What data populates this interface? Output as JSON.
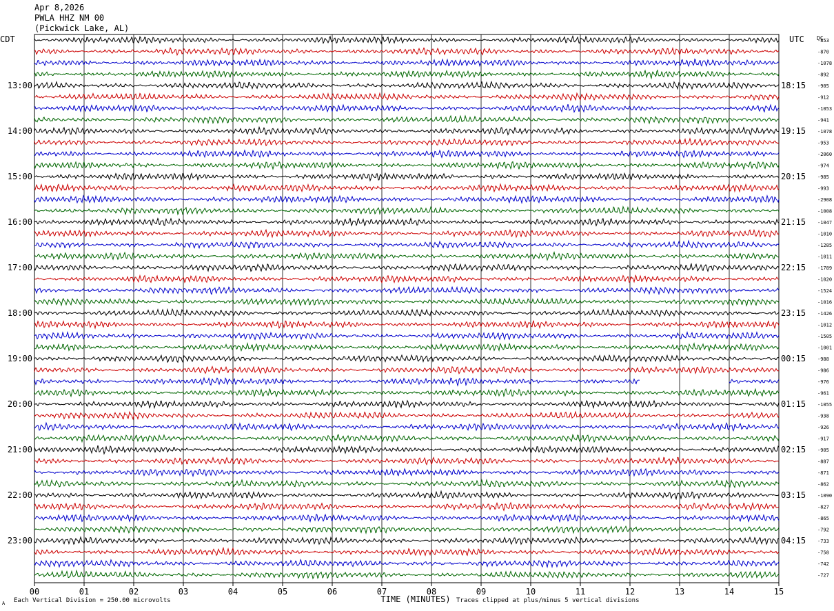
{
  "header": {
    "date": "Apr 8,2026",
    "station": "PWLA HHZ NM 00",
    "location": "(Pickwick Lake, AL)"
  },
  "left_axis": {
    "title": "CDT"
  },
  "right_axis": {
    "title": "UTC",
    "dc_title": "DC"
  },
  "footer": {
    "scale_note": "Each Vertical Division = 250.00 microvolts",
    "clip_note": "Traces clipped at plus/minus 5 vertical divisions",
    "corner_mark": "A"
  },
  "chart_data": {
    "type": "line",
    "xlabel": "TIME (MINUTES)",
    "xlim": [
      0,
      15
    ],
    "x_ticks": [
      "00",
      "01",
      "02",
      "03",
      "04",
      "05",
      "06",
      "07",
      "08",
      "09",
      "10",
      "11",
      "12",
      "13",
      "14",
      "15"
    ],
    "trace_colors": [
      "#000000",
      "#cc0000",
      "#0000cc",
      "#006600"
    ],
    "rows_per_hour": 4,
    "minutes_per_row": 15,
    "left_hour_labels": [
      "13:00",
      "14:00",
      "15:00",
      "16:00",
      "17:00",
      "18:00",
      "19:00",
      "20:00",
      "21:00",
      "22:00",
      "23:00"
    ],
    "right_hour_labels": [
      "18:15",
      "19:15",
      "20:15",
      "21:15",
      "22:15",
      "23:15",
      "00:15",
      "01:15",
      "02:15",
      "03:15",
      "04:15"
    ],
    "dc_offsets": [
      "-853",
      "-870",
      "-1078",
      "-892",
      "-905",
      "-912",
      "-1053",
      "-941",
      "-1078",
      "-953",
      "-2060",
      "-974",
      "-985",
      "-993",
      "-2908",
      "-1008",
      "-1047",
      "-1010",
      "-1285",
      "-1011",
      "-1789",
      "-1020",
      "-1524",
      "-1016",
      "-1426",
      "-1012",
      "-1505",
      "-1001",
      "-988",
      "-986",
      "-976",
      "-961",
      "-1055",
      "-938",
      "-926",
      "-917",
      "-905",
      "-887",
      "-871",
      "-862",
      "-1090",
      "-827",
      "-865",
      "-792",
      "-733",
      "-758",
      "-742",
      "-727"
    ],
    "gap": {
      "row": 30,
      "from_minute": 12.2,
      "to_minute": 14.0
    }
  }
}
